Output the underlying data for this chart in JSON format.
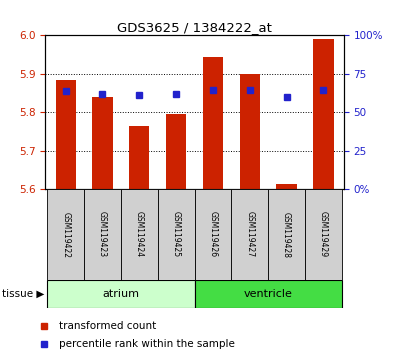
{
  "title": "GDS3625 / 1384222_at",
  "samples": [
    "GSM119422",
    "GSM119423",
    "GSM119424",
    "GSM119425",
    "GSM119426",
    "GSM119427",
    "GSM119428",
    "GSM119429"
  ],
  "red_values": [
    5.885,
    5.84,
    5.765,
    5.795,
    5.945,
    5.9,
    5.615,
    5.99
  ],
  "blue_values": [
    5.855,
    5.848,
    5.845,
    5.848,
    5.858,
    5.858,
    5.84,
    5.858
  ],
  "ylim_left": [
    5.6,
    6.0
  ],
  "ylim_right": [
    0,
    100
  ],
  "yticks_left": [
    5.6,
    5.7,
    5.8,
    5.9,
    6.0
  ],
  "yticks_right": [
    0,
    25,
    50,
    75,
    100
  ],
  "ytick_right_labels": [
    "0%",
    "25",
    "50",
    "75",
    "100%"
  ],
  "bar_color": "#cc2200",
  "dot_color": "#2222cc",
  "bar_width": 0.55,
  "tissue_groups": [
    {
      "label": "atrium",
      "samples": [
        0,
        1,
        2,
        3
      ],
      "color": "#ccffcc"
    },
    {
      "label": "ventricle",
      "samples": [
        4,
        5,
        6,
        7
      ],
      "color": "#44dd44"
    }
  ],
  "tissue_label": "tissue",
  "legend_red": "transformed count",
  "legend_blue": "percentile rank within the sample",
  "tick_color_left": "#cc2200",
  "tick_color_right": "#2222cc"
}
